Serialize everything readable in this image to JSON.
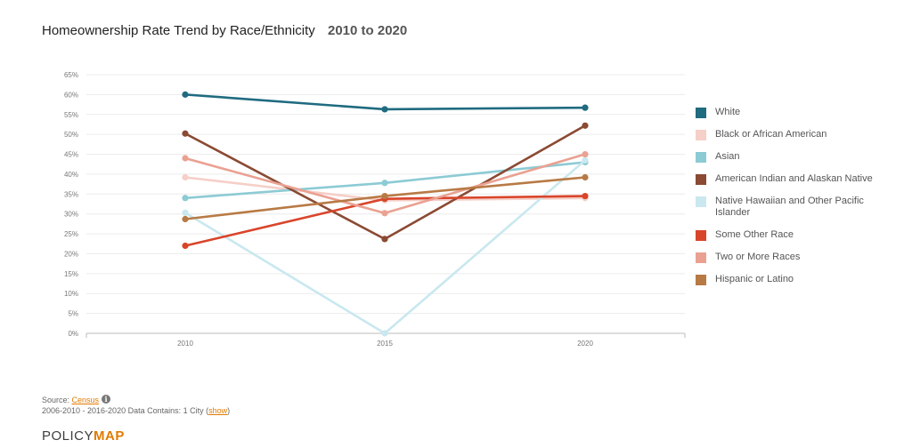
{
  "header": {
    "title": "Homeownership Rate Trend by Race/Ethnicity",
    "range": "2010 to 2020"
  },
  "chart_data": {
    "type": "line",
    "x": [
      "2010",
      "2015",
      "2020"
    ],
    "y_ticks": [
      "0%",
      "5%",
      "10%",
      "15%",
      "20%",
      "25%",
      "30%",
      "35%",
      "40%",
      "45%",
      "50%",
      "55%",
      "60%",
      "65%"
    ],
    "ylim": [
      0,
      65
    ],
    "grid": true,
    "legend_position": "right",
    "series": [
      {
        "name": "White",
        "color": "#1f6b80",
        "values": [
          60,
          56.3,
          56.7
        ]
      },
      {
        "name": "Black or African American",
        "color": "#f5cfc8",
        "values": [
          39.2,
          33.4,
          34
        ]
      },
      {
        "name": "Asian",
        "color": "#8ccbd4",
        "values": [
          34,
          37.8,
          43
        ]
      },
      {
        "name": "American Indian and Alaskan Native",
        "color": "#8b4a33",
        "values": [
          50.2,
          23.7,
          52.2
        ]
      },
      {
        "name": "Native Hawaiian and Other Pacific Islander",
        "color": "#c9e8ef",
        "values": [
          30.3,
          0,
          43.5
        ]
      },
      {
        "name": "Some Other Race",
        "color": "#d9452b",
        "values": [
          22,
          33.8,
          34.5
        ]
      },
      {
        "name": "Two or More Races",
        "color": "#eaa192",
        "values": [
          44,
          30.2,
          45
        ]
      },
      {
        "name": "Hispanic or Latino",
        "color": "#b87a45",
        "values": [
          28.7,
          34.5,
          39.2
        ]
      }
    ]
  },
  "footer": {
    "source_prefix": "Source: ",
    "source_link": "Census",
    "info_icon": "i",
    "note_prefix": "2006-2010 - 2016-2020 Data Contains: 1 City (",
    "note_link": "show",
    "note_suffix": ")",
    "logo_part1": "POLICY",
    "logo_part2": "MAP"
  }
}
